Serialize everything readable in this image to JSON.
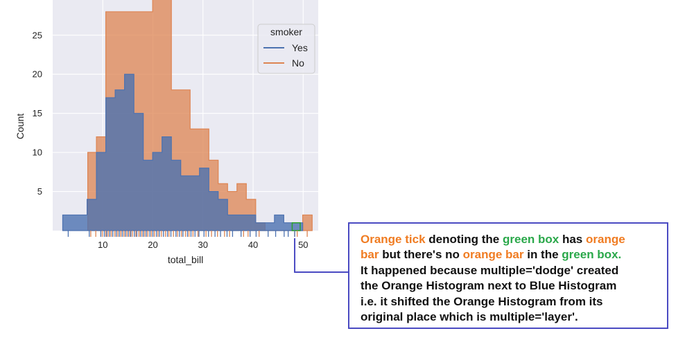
{
  "chart_data": {
    "type": "histogram",
    "xlabel": "total_bill",
    "ylabel": "Count",
    "xlim": [
      0,
      53
    ],
    "ylim": [
      0,
      29.5
    ],
    "x_ticks": [
      "10",
      "20",
      "30",
      "40",
      "50"
    ],
    "y_ticks": [
      "5",
      "10",
      "15",
      "20",
      "25"
    ],
    "legend": {
      "title": "smoker",
      "position": "top-right"
    },
    "series": [
      {
        "name": "Yes",
        "color": "#4c72b0",
        "bin_edges": [
          2.0,
          6.86,
          8.73,
          10.6,
          12.47,
          14.34,
          16.21,
          18.08,
          19.95,
          21.82,
          23.69,
          25.56,
          27.43,
          29.3,
          31.17,
          33.04,
          34.91,
          36.78,
          38.65,
          40.52,
          42.39,
          44.26,
          46.13,
          48.0,
          49.9
        ],
        "counts": [
          2,
          4,
          10,
          17,
          18,
          20,
          15,
          9,
          10,
          12,
          9,
          7,
          7,
          8,
          5,
          4,
          2,
          2,
          2,
          1,
          1,
          2,
          1,
          1
        ]
      },
      {
        "name": "No",
        "color": "#dd8452",
        "bin_edges": [
          7.0,
          8.73,
          10.6,
          12.47,
          14.34,
          16.21,
          18.08,
          19.95,
          21.82,
          23.69,
          25.56,
          27.43,
          29.3,
          31.17,
          33.04,
          34.91,
          36.78,
          38.65,
          40.52,
          42.39,
          44.26,
          46.13,
          48.0,
          49.9,
          51.79
        ],
        "counts": [
          10,
          12,
          28,
          28,
          28,
          28,
          28,
          30,
          30,
          18,
          18,
          13,
          13,
          9,
          6,
          5,
          6,
          4,
          1,
          0,
          0,
          0,
          0,
          2
        ]
      }
    ],
    "rug": {
      "Yes": [
        3.1,
        7.3,
        9.6,
        10.3,
        10.8,
        11.4,
        12.0,
        12.7,
        13.3,
        13.9,
        14.5,
        15.1,
        15.6,
        16.3,
        16.8,
        17.5,
        18.1,
        18.7,
        19.4,
        20.0,
        20.7,
        21.3,
        22.1,
        22.9,
        23.6,
        24.6,
        25.3,
        26.0,
        26.9,
        27.6,
        28.4,
        29.2,
        30.2,
        31.1,
        32.4,
        33.5,
        34.8,
        35.9,
        37.6,
        39.4,
        40.6,
        43.0,
        44.5,
        46.2,
        47.0,
        48.3
      ],
      "No": [
        7.6,
        8.6,
        9.9,
        10.6,
        11.1,
        11.7,
        12.4,
        13.0,
        13.6,
        14.2,
        14.8,
        15.4,
        15.9,
        16.6,
        17.2,
        17.8,
        18.4,
        19.0,
        19.7,
        20.3,
        21.0,
        21.7,
        22.5,
        23.2,
        24.1,
        24.9,
        25.7,
        26.5,
        27.2,
        28.0,
        29.0,
        30.6,
        31.7,
        32.9,
        34.3,
        35.3,
        38.1,
        39.0,
        41.2,
        48.3,
        48.8,
        50.8
      ]
    },
    "highlight_box": {
      "x_range": [
        47.8,
        49.4
      ],
      "y_range": [
        0.0,
        1.0
      ],
      "color": "#2ca02c"
    },
    "annotation_target_x": 48.3
  },
  "annotation": {
    "color_accent": "#f07c22",
    "color_green": "#2aa84a",
    "lines": [
      [
        {
          "t": "Orange tick",
          "c": "orange"
        },
        {
          "t": " denoting the ",
          "c": "black"
        },
        {
          "t": "green box",
          "c": "green"
        },
        {
          "t": " has ",
          "c": "black"
        },
        {
          "t": "orange",
          "c": "orange"
        }
      ],
      [
        {
          "t": "bar",
          "c": "orange"
        },
        {
          "t": " but there's no ",
          "c": "black"
        },
        {
          "t": "orange bar",
          "c": "orange"
        },
        {
          "t": " in the ",
          "c": "black"
        },
        {
          "t": "green box.",
          "c": "green"
        }
      ],
      [
        {
          "t": "It happened because multiple='dodge' created",
          "c": "black"
        }
      ],
      [
        {
          "t": "the Orange Histogram next to Blue Histogram",
          "c": "black"
        }
      ],
      [
        {
          "t": "i.e. it shifted the Orange Histogram from its",
          "c": "black"
        }
      ],
      [
        {
          "t": "original place which is multiple='layer'.",
          "c": "black"
        }
      ]
    ]
  }
}
